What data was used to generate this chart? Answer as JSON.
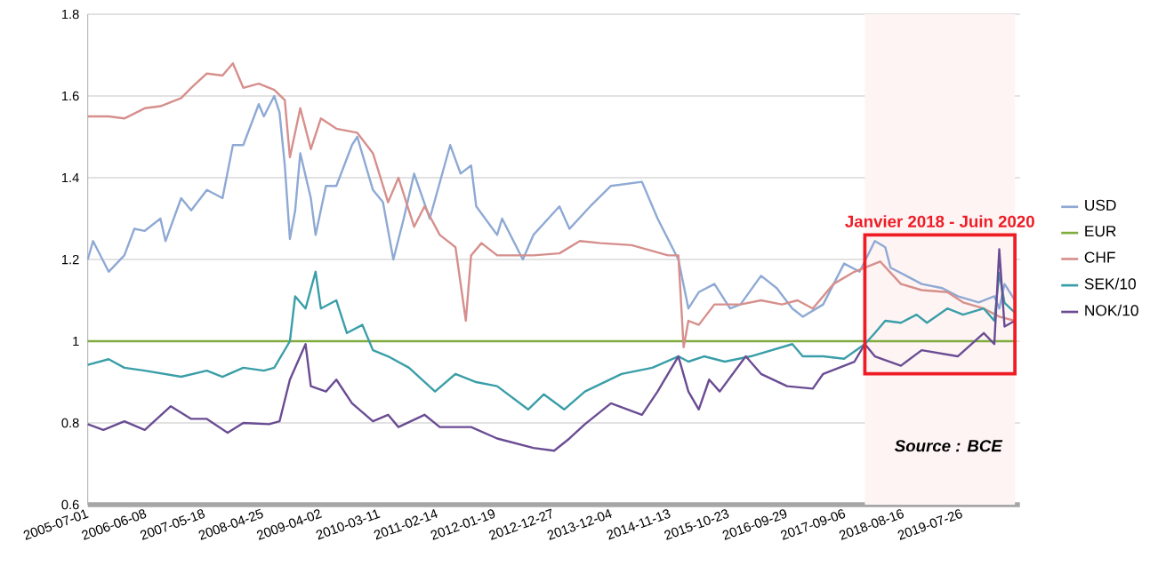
{
  "chart_data": {
    "type": "line",
    "xlim": [
      "2005-07-01",
      "2020-06-30"
    ],
    "xticks": [
      "2005-07-01",
      "2006-06-08",
      "2007-05-18",
      "2008-04-25",
      "2009-04-02",
      "2010-03-11",
      "2011-02-14",
      "2012-01-19",
      "2012-12-27",
      "2013-12-04",
      "2014-11-13",
      "2015-10-23",
      "2016-09-29",
      "2017-09-06",
      "2018-08-16",
      "2019-07-26"
    ],
    "ylim": [
      0.6,
      1.8
    ],
    "yticks": [
      0.6,
      0.8,
      1,
      1.2,
      1.4,
      1.6,
      1.8
    ],
    "grid": "y",
    "legend": "right",
    "series": [
      {
        "name": "USD",
        "color": "#8ea9d4",
        "x": [
          "2005-07",
          "2005-08",
          "2005-11",
          "2006-02",
          "2006-04",
          "2006-06",
          "2006-09",
          "2006-10",
          "2007-01",
          "2007-03",
          "2007-06",
          "2007-09",
          "2007-11",
          "2008-01",
          "2008-04",
          "2008-05",
          "2008-07",
          "2008-08",
          "2008-09",
          "2008-10",
          "2008-11",
          "2008-12",
          "2009-02",
          "2009-03",
          "2009-05",
          "2009-07",
          "2009-10",
          "2009-11",
          "2010-02",
          "2010-04",
          "2010-06",
          "2010-08",
          "2010-10",
          "2011-01",
          "2011-05",
          "2011-07",
          "2011-09",
          "2011-10",
          "2012-02",
          "2012-03",
          "2012-07",
          "2012-09",
          "2013-02",
          "2013-04",
          "2013-08",
          "2013-12",
          "2014-06",
          "2014-09",
          "2015-01",
          "2015-03",
          "2015-05",
          "2015-08",
          "2015-11",
          "2016-01",
          "2016-05",
          "2016-08",
          "2016-11",
          "2017-01",
          "2017-05",
          "2017-09",
          "2017-12",
          "2018-03",
          "2018-05",
          "2018-06",
          "2018-09",
          "2018-12",
          "2019-04",
          "2019-07",
          "2019-11",
          "2020-02",
          "2020-03",
          "2020-04",
          "2020-06"
        ],
        "values": [
          1.2,
          1.245,
          1.17,
          1.21,
          1.275,
          1.27,
          1.3,
          1.245,
          1.35,
          1.32,
          1.37,
          1.35,
          1.48,
          1.48,
          1.58,
          1.55,
          1.6,
          1.56,
          1.43,
          1.25,
          1.32,
          1.46,
          1.35,
          1.26,
          1.38,
          1.38,
          1.48,
          1.5,
          1.37,
          1.34,
          1.2,
          1.3,
          1.41,
          1.3,
          1.48,
          1.41,
          1.43,
          1.33,
          1.26,
          1.3,
          1.2,
          1.26,
          1.33,
          1.275,
          1.33,
          1.38,
          1.39,
          1.3,
          1.2,
          1.08,
          1.12,
          1.14,
          1.08,
          1.09,
          1.16,
          1.13,
          1.08,
          1.06,
          1.09,
          1.19,
          1.17,
          1.245,
          1.23,
          1.18,
          1.16,
          1.14,
          1.13,
          1.11,
          1.095,
          1.11,
          1.08,
          1.14,
          1.1
        ]
      },
      {
        "name": "EUR",
        "color": "#7fab3f",
        "x": [
          "2005-07",
          "2020-06"
        ],
        "values": [
          1,
          1
        ]
      },
      {
        "name": "CHF",
        "color": "#d68f8c",
        "x": [
          "2005-07",
          "2005-11",
          "2006-02",
          "2006-06",
          "2006-09",
          "2007-01",
          "2007-03",
          "2007-06",
          "2007-09",
          "2007-11",
          "2008-01",
          "2008-04",
          "2008-07",
          "2008-09",
          "2008-10",
          "2008-12",
          "2009-02",
          "2009-04",
          "2009-07",
          "2009-11",
          "2010-02",
          "2010-05",
          "2010-07",
          "2010-10",
          "2010-12",
          "2011-03",
          "2011-06",
          "2011-08",
          "2011-09",
          "2011-11",
          "2012-02",
          "2012-09",
          "2013-02",
          "2013-06",
          "2013-10",
          "2014-04",
          "2014-11",
          "2015-01",
          "2015-02",
          "2015-03",
          "2015-05",
          "2015-08",
          "2016-01",
          "2016-05",
          "2016-09",
          "2016-12",
          "2017-03",
          "2017-07",
          "2017-11",
          "2018-04",
          "2018-08",
          "2018-12",
          "2019-05",
          "2019-08",
          "2019-12",
          "2020-03",
          "2020-06"
        ],
        "values": [
          1.55,
          1.55,
          1.545,
          1.57,
          1.575,
          1.595,
          1.62,
          1.655,
          1.65,
          1.68,
          1.62,
          1.63,
          1.615,
          1.59,
          1.45,
          1.57,
          1.47,
          1.545,
          1.52,
          1.51,
          1.46,
          1.34,
          1.4,
          1.28,
          1.33,
          1.26,
          1.23,
          1.05,
          1.21,
          1.24,
          1.21,
          1.21,
          1.215,
          1.245,
          1.24,
          1.235,
          1.21,
          1.21,
          0.985,
          1.05,
          1.04,
          1.09,
          1.09,
          1.1,
          1.09,
          1.1,
          1.08,
          1.14,
          1.17,
          1.195,
          1.14,
          1.125,
          1.12,
          1.095,
          1.08,
          1.06,
          1.05
        ]
      },
      {
        "name": "SEK/10",
        "color": "#3a9ea8",
        "x": [
          "2005-07",
          "2005-11",
          "2006-02",
          "2006-06",
          "2007-01",
          "2007-06",
          "2007-09",
          "2008-01",
          "2008-05",
          "2008-07",
          "2008-10",
          "2008-11",
          "2009-01",
          "2009-03",
          "2009-04",
          "2009-07",
          "2009-09",
          "2009-12",
          "2010-02",
          "2010-05",
          "2010-09",
          "2011-02",
          "2011-06",
          "2011-10",
          "2012-02",
          "2012-08",
          "2012-11",
          "2013-03",
          "2013-07",
          "2014-02",
          "2014-08",
          "2015-01",
          "2015-03",
          "2015-06",
          "2015-10",
          "2016-03",
          "2016-11",
          "2017-01",
          "2017-05",
          "2017-09",
          "2018-01",
          "2018-03",
          "2018-05",
          "2018-08",
          "2018-11",
          "2019-01",
          "2019-05",
          "2019-08",
          "2019-12",
          "2020-02",
          "2020-03",
          "2020-04",
          "2020-06"
        ],
        "values": [
          0.942,
          0.956,
          0.935,
          0.928,
          0.913,
          0.928,
          0.913,
          0.935,
          0.928,
          0.935,
          1.0,
          1.11,
          1.08,
          1.17,
          1.08,
          1.1,
          1.02,
          1.04,
          0.978,
          0.963,
          0.935,
          0.877,
          0.92,
          0.9,
          0.89,
          0.833,
          0.87,
          0.833,
          0.877,
          0.92,
          0.935,
          0.963,
          0.95,
          0.963,
          0.95,
          0.963,
          0.993,
          0.963,
          0.963,
          0.957,
          0.993,
          1.02,
          1.05,
          1.045,
          1.065,
          1.045,
          1.08,
          1.065,
          1.08,
          1.05,
          1.167,
          1.094,
          1.07
        ]
      },
      {
        "name": "NOK/10",
        "color": "#6a4c93",
        "x": [
          "2005-07",
          "2005-10",
          "2006-02",
          "2006-06",
          "2006-11",
          "2007-03",
          "2007-06",
          "2007-10",
          "2008-01",
          "2008-06",
          "2008-08",
          "2008-10",
          "2009-01",
          "2009-02",
          "2009-05",
          "2009-07",
          "2009-10",
          "2010-02",
          "2010-05",
          "2010-07",
          "2010-12",
          "2011-03",
          "2011-09",
          "2012-02",
          "2012-09",
          "2013-01",
          "2013-04",
          "2013-07",
          "2013-12",
          "2014-06",
          "2014-09",
          "2015-01",
          "2015-03",
          "2015-05",
          "2015-07",
          "2015-09",
          "2016-02",
          "2016-05",
          "2016-10",
          "2017-03",
          "2017-05",
          "2017-11",
          "2018-01",
          "2018-03",
          "2018-08",
          "2018-12",
          "2019-07",
          "2019-12",
          "2020-02",
          "2020-03",
          "2020-04",
          "2020-06"
        ],
        "values": [
          0.797,
          0.783,
          0.804,
          0.783,
          0.841,
          0.81,
          0.81,
          0.776,
          0.8,
          0.797,
          0.804,
          0.906,
          0.993,
          0.89,
          0.877,
          0.906,
          0.848,
          0.804,
          0.82,
          0.79,
          0.82,
          0.79,
          0.79,
          0.762,
          0.739,
          0.732,
          0.762,
          0.797,
          0.848,
          0.82,
          0.877,
          0.963,
          0.877,
          0.833,
          0.906,
          0.877,
          0.963,
          0.92,
          0.89,
          0.884,
          0.92,
          0.95,
          0.993,
          0.963,
          0.94,
          0.978,
          0.963,
          1.02,
          0.993,
          1.225,
          1.036,
          1.05
        ]
      }
    ],
    "bands": [
      {
        "axis": "x",
        "from": "2018-01",
        "to": "2020-06",
        "label": "Janvier 2018 - Juin 2020"
      }
    ],
    "annotations": [
      "Source : BCE"
    ]
  }
}
